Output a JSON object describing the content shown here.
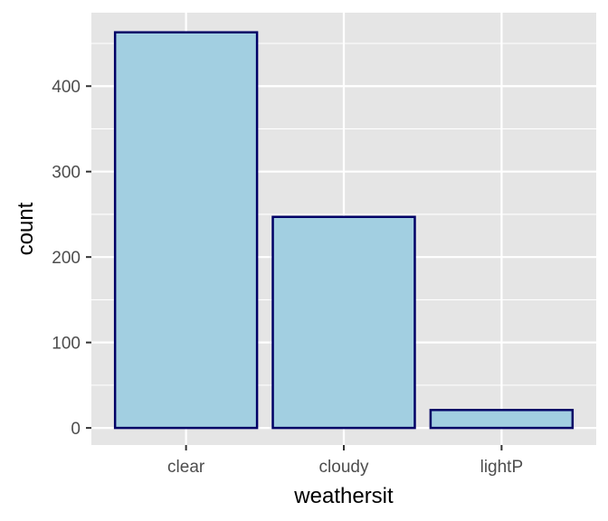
{
  "chart_data": {
    "type": "bar",
    "categories": [
      "clear",
      "cloudy",
      "lightP"
    ],
    "values": [
      463,
      247,
      21
    ],
    "xlabel": "weathersit",
    "ylabel": "count",
    "ylim": [
      -20,
      486
    ],
    "yticks": [
      0,
      100,
      200,
      300,
      400
    ],
    "grid": true,
    "colors": {
      "panel_background": "#e5e5e5",
      "grid_line": "#ffffff",
      "bar_fill": "#a2cfe1",
      "bar_stroke": "#000066",
      "tick_text": "#4d4d4d",
      "tick_mark": "#333333"
    }
  }
}
